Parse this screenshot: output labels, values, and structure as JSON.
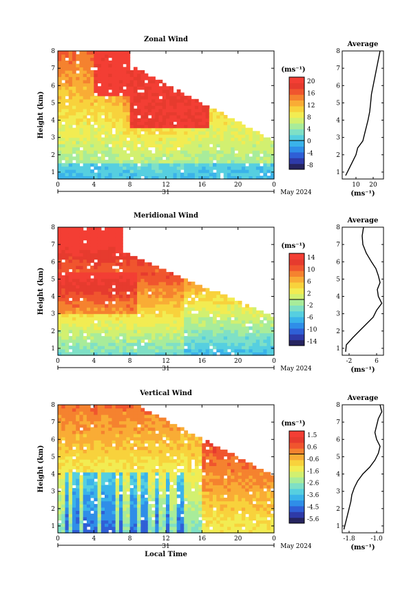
{
  "date_label": "May 2024",
  "day_label": "31",
  "x_axis_label": "Local Time",
  "y_axis_label": "Height (km)",
  "avg_title": "Average",
  "unit_label": "(ms⁻¹)",
  "colors": {
    "panel_frame": "#000000",
    "scale": [
      "#26245f",
      "#2e3aa8",
      "#2f5fd6",
      "#2f8ee8",
      "#3ab3ea",
      "#56cfe0",
      "#7fe0c6",
      "#a8ec9a",
      "#d2f070",
      "#f2ec52",
      "#f8d23c",
      "#f9ac35",
      "#f5822f",
      "#f0552e",
      "#e63b2e",
      "#f33e34"
    ]
  },
  "chart_data": [
    {
      "type": "heatmap",
      "title": "Zonal Wind",
      "xlabel": "",
      "ylabel": "Height (km)",
      "x_ticks": [
        "0",
        "4",
        "8",
        "12",
        "16",
        "20",
        "0"
      ],
      "y_ticks": [
        "1",
        "2",
        "3",
        "4",
        "5",
        "6",
        "7",
        "8"
      ],
      "xlim": [
        0,
        24
      ],
      "ylim": [
        0.6,
        8
      ],
      "colorbar": {
        "ticks": [
          "20",
          "16",
          "12",
          "8",
          "4",
          "0",
          "-4",
          "-8"
        ],
        "range": [
          -10,
          22
        ]
      },
      "average_profile": {
        "x_ticks": [
          "10",
          "20"
        ],
        "xlim": [
          2,
          26
        ],
        "heights": [
          0.8,
          1.2,
          1.6,
          2.0,
          2.4,
          2.8,
          3.2,
          3.6,
          4.0,
          4.5,
          5.0,
          5.5,
          6.0,
          6.5,
          7.0,
          7.5,
          8.0
        ],
        "values": [
          4,
          6,
          8,
          10,
          11,
          14,
          15,
          16,
          17,
          18,
          18.5,
          19,
          20,
          21,
          22,
          23,
          24
        ]
      }
    },
    {
      "type": "heatmap",
      "title": "Meridional Wind",
      "xlabel": "",
      "ylabel": "Height (km)",
      "x_ticks": [
        "0",
        "4",
        "8",
        "12",
        "16",
        "20",
        "0"
      ],
      "y_ticks": [
        "1",
        "2",
        "3",
        "4",
        "5",
        "6",
        "7",
        "8"
      ],
      "xlim": [
        0,
        24
      ],
      "ylim": [
        0.6,
        8
      ],
      "colorbar": {
        "ticks": [
          "14",
          "10",
          "6",
          "2",
          "-2",
          "-6",
          "-10",
          "-14"
        ],
        "range": [
          -16,
          16
        ]
      },
      "average_profile": {
        "x_ticks": [
          "-2",
          "6"
        ],
        "xlim": [
          -4,
          8
        ],
        "heights": [
          0.8,
          1.2,
          1.6,
          2.0,
          2.4,
          2.8,
          3.2,
          3.6,
          4.0,
          4.4,
          4.8,
          5.2,
          5.6,
          6.0,
          6.5,
          7.0,
          7.5,
          8.0
        ],
        "values": [
          -3,
          -2.8,
          -1,
          1,
          3,
          5,
          6,
          7.5,
          6.5,
          6.2,
          7,
          6.5,
          5.8,
          4.5,
          3,
          2,
          1.8,
          2.2
        ]
      }
    },
    {
      "type": "heatmap",
      "title": "Vertical Wind",
      "xlabel": "Local Time",
      "ylabel": "Height (km)",
      "x_ticks": [
        "0",
        "4",
        "8",
        "12",
        "16",
        "20",
        "0"
      ],
      "y_ticks": [
        "1",
        "2",
        "3",
        "4",
        "5",
        "6",
        "7",
        "8"
      ],
      "xlim": [
        0,
        24
      ],
      "ylim": [
        0.6,
        8
      ],
      "colorbar": {
        "ticks": [
          "1.5",
          "0.6",
          "-0.6",
          "-1.6",
          "-2.6",
          "-3.6",
          "-4.5",
          "-5.6"
        ],
        "range": [
          -6,
          2
        ]
      },
      "average_profile": {
        "x_ticks": [
          "-1.8",
          "-1.0"
        ],
        "xlim": [
          -2.0,
          -0.8
        ],
        "heights": [
          0.8,
          1.2,
          1.6,
          2.0,
          2.4,
          2.8,
          3.2,
          3.6,
          4.0,
          4.4,
          4.8,
          5.2,
          5.6,
          6.0,
          6.4,
          6.8,
          7.2,
          7.6,
          8.0
        ],
        "values": [
          -1.95,
          -1.9,
          -1.85,
          -1.8,
          -1.75,
          -1.72,
          -1.65,
          -1.55,
          -1.4,
          -1.2,
          -1.05,
          -0.95,
          -0.9,
          -1.0,
          -1.05,
          -1.0,
          -0.95,
          -0.85,
          -0.9
        ]
      }
    }
  ]
}
